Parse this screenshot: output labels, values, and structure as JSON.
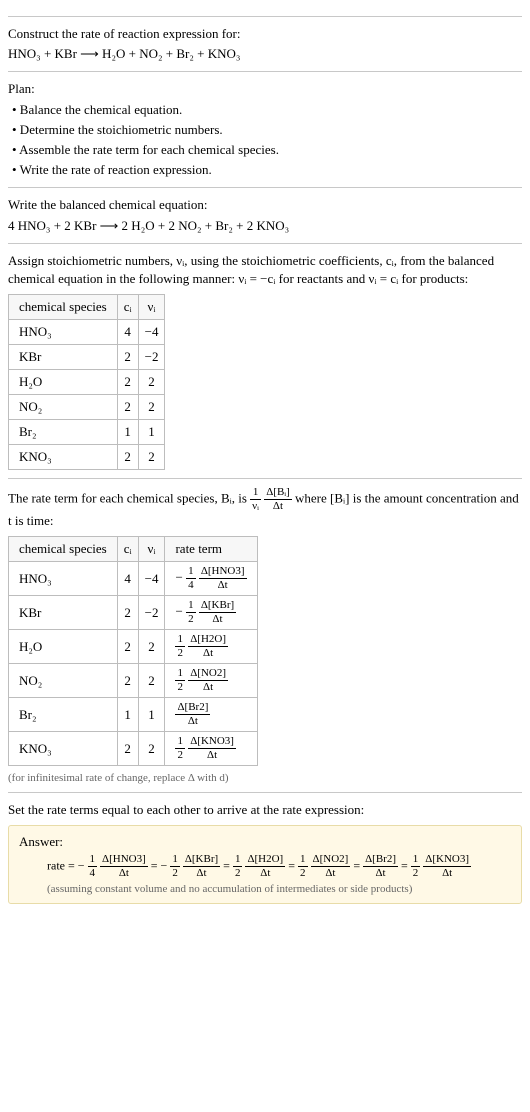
{
  "intro": {
    "line1": "Construct the rate of reaction expression for:",
    "equation": "HNO₃ + KBr ⟶ H₂O + NO₂ + Br₂ + KNO₃"
  },
  "plan": {
    "heading": "Plan:",
    "items": [
      "• Balance the chemical equation.",
      "• Determine the stoichiometric numbers.",
      "• Assemble the rate term for each chemical species.",
      "• Write the rate of reaction expression."
    ]
  },
  "balanced": {
    "heading": "Write the balanced chemical equation:",
    "equation": "4 HNO₃ + 2 KBr ⟶ 2 H₂O + 2 NO₂ + Br₂ + 2 KNO₃"
  },
  "assign": {
    "text": "Assign stoichiometric numbers, νᵢ, using the stoichiometric coefficients, cᵢ, from the balanced chemical equation in the following manner: νᵢ = −cᵢ for reactants and νᵢ = cᵢ for products:",
    "headers": [
      "chemical species",
      "cᵢ",
      "νᵢ"
    ],
    "rows": [
      [
        "HNO₃",
        "4",
        "−4"
      ],
      [
        "KBr",
        "2",
        "−2"
      ],
      [
        "H₂O",
        "2",
        "2"
      ],
      [
        "NO₂",
        "2",
        "2"
      ],
      [
        "Br₂",
        "1",
        "1"
      ],
      [
        "KNO₃",
        "2",
        "2"
      ]
    ]
  },
  "rateterm": {
    "pre": "The rate term for each chemical species, Bᵢ, is ",
    "mid": " where [Bᵢ] is the amount concentration and t is time:",
    "frac1": {
      "n": "1",
      "d": "νᵢ"
    },
    "frac2": {
      "n": "Δ[Bᵢ]",
      "d": "Δt"
    },
    "headers": [
      "chemical species",
      "cᵢ",
      "νᵢ",
      "rate term"
    ],
    "rows": [
      {
        "sp": "HNO₃",
        "c": "4",
        "v": "−4",
        "sign": "−",
        "fn": "1",
        "fd": "4",
        "gn": "Δ[HNO3]",
        "gd": "Δt"
      },
      {
        "sp": "KBr",
        "c": "2",
        "v": "−2",
        "sign": "−",
        "fn": "1",
        "fd": "2",
        "gn": "Δ[KBr]",
        "gd": "Δt"
      },
      {
        "sp": "H₂O",
        "c": "2",
        "v": "2",
        "sign": "",
        "fn": "1",
        "fd": "2",
        "gn": "Δ[H2O]",
        "gd": "Δt"
      },
      {
        "sp": "NO₂",
        "c": "2",
        "v": "2",
        "sign": "",
        "fn": "1",
        "fd": "2",
        "gn": "Δ[NO2]",
        "gd": "Δt"
      },
      {
        "sp": "Br₂",
        "c": "1",
        "v": "1",
        "sign": "",
        "fn": "",
        "fd": "",
        "gn": "Δ[Br2]",
        "gd": "Δt"
      },
      {
        "sp": "KNO₃",
        "c": "2",
        "v": "2",
        "sign": "",
        "fn": "1",
        "fd": "2",
        "gn": "Δ[KNO3]",
        "gd": "Δt"
      }
    ],
    "note": "(for infinitesimal rate of change, replace Δ with d)"
  },
  "final": {
    "text": "Set the rate terms equal to each other to arrive at the rate expression:"
  },
  "answer": {
    "label": "Answer:",
    "prefix": "rate = ",
    "terms": [
      {
        "sign": "−",
        "fn": "1",
        "fd": "4",
        "gn": "Δ[HNO3]",
        "gd": "Δt"
      },
      {
        "sign": "−",
        "fn": "1",
        "fd": "2",
        "gn": "Δ[KBr]",
        "gd": "Δt"
      },
      {
        "sign": "",
        "fn": "1",
        "fd": "2",
        "gn": "Δ[H2O]",
        "gd": "Δt"
      },
      {
        "sign": "",
        "fn": "1",
        "fd": "2",
        "gn": "Δ[NO2]",
        "gd": "Δt"
      },
      {
        "sign": "",
        "fn": "",
        "fd": "",
        "gn": "Δ[Br2]",
        "gd": "Δt"
      },
      {
        "sign": "",
        "fn": "1",
        "fd": "2",
        "gn": "Δ[KNO3]",
        "gd": "Δt"
      }
    ],
    "note": "(assuming constant volume and no accumulation of intermediates or side products)"
  }
}
